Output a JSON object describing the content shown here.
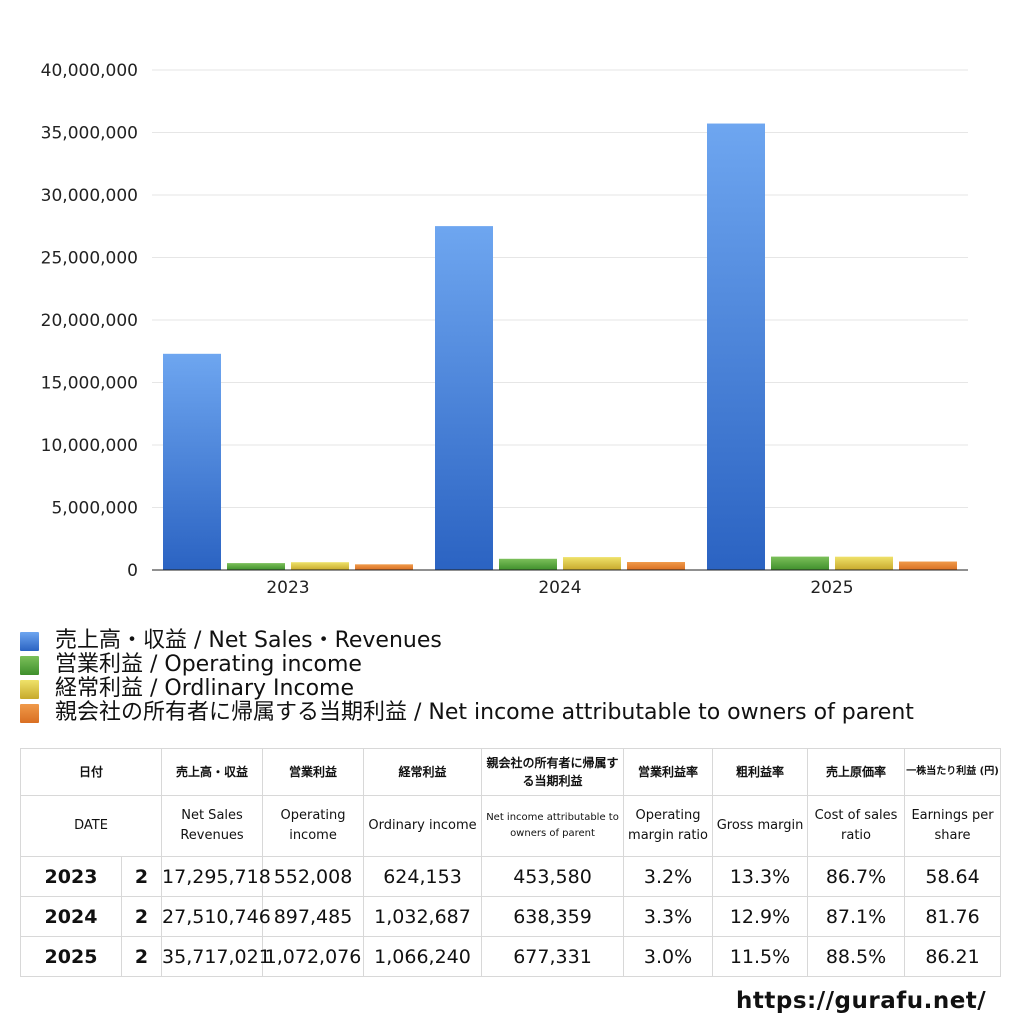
{
  "chart_data": {
    "type": "bar",
    "categories": [
      "2023",
      "2024",
      "2025"
    ],
    "series": [
      {
        "name": "売上高・収益 / Net Sales・Revenues",
        "values": [
          17295718,
          27510746,
          35717021
        ],
        "color_top": "#6ea6f0",
        "color_bottom": "#2b63c2"
      },
      {
        "name": "営業利益 / Operating income",
        "values": [
          552008,
          897485,
          1072076
        ],
        "color_top": "#7cc05a",
        "color_bottom": "#3f8f2c"
      },
      {
        "name": "経常利益 / Ordlinary Income",
        "values": [
          624153,
          1032687,
          1066240
        ],
        "color_top": "#efe26a",
        "color_bottom": "#c7a92c"
      },
      {
        "name": "親会社の所有者に帰属する当期利益 / Net income attributable to owners of parent",
        "values": [
          453580,
          638359,
          677331
        ],
        "color_top": "#f09a4a",
        "color_bottom": "#d96f22"
      }
    ],
    "ylim": [
      0,
      40000000
    ],
    "yticks": [
      "0",
      "5,000,000",
      "10,000,000",
      "15,000,000",
      "20,000,000",
      "25,000,000",
      "30,000,000",
      "35,000,000",
      "40,000,000"
    ],
    "grid": true,
    "legend_position": "bottom"
  },
  "table": {
    "header_jp": [
      "日付",
      "売上高・収益",
      "営業利益",
      "経常利益",
      "親会社の所有者に帰属する当期利益",
      "営業利益率",
      "粗利益率",
      "売上原価率",
      "一株当たり利益 (円)"
    ],
    "header_en": [
      "DATE",
      "Net Sales Revenues",
      "Operating income",
      "Ordinary income",
      "Net income attributable to owners of parent",
      "Operating margin ratio",
      "Gross margin",
      "Cost of sales ratio",
      "Earnings per share"
    ],
    "rows": [
      {
        "year": "2023",
        "q": "2",
        "sales": "17,295,718",
        "op": "552,008",
        "ord": "624,153",
        "net": "453,580",
        "opm": "3.2%",
        "gm": "13.3%",
        "cos": "86.7%",
        "eps": "58.64"
      },
      {
        "year": "2024",
        "q": "2",
        "sales": "27,510,746",
        "op": "897,485",
        "ord": "1,032,687",
        "net": "638,359",
        "opm": "3.3%",
        "gm": "12.9%",
        "cos": "87.1%",
        "eps": "81.76"
      },
      {
        "year": "2025",
        "q": "2",
        "sales": "35,717,021",
        "op": "1,072,076",
        "ord": "1,066,240",
        "net": "677,331",
        "opm": "3.0%",
        "gm": "11.5%",
        "cos": "88.5%",
        "eps": "86.21"
      }
    ]
  },
  "footer": {
    "url": "https://gurafu.net/"
  }
}
